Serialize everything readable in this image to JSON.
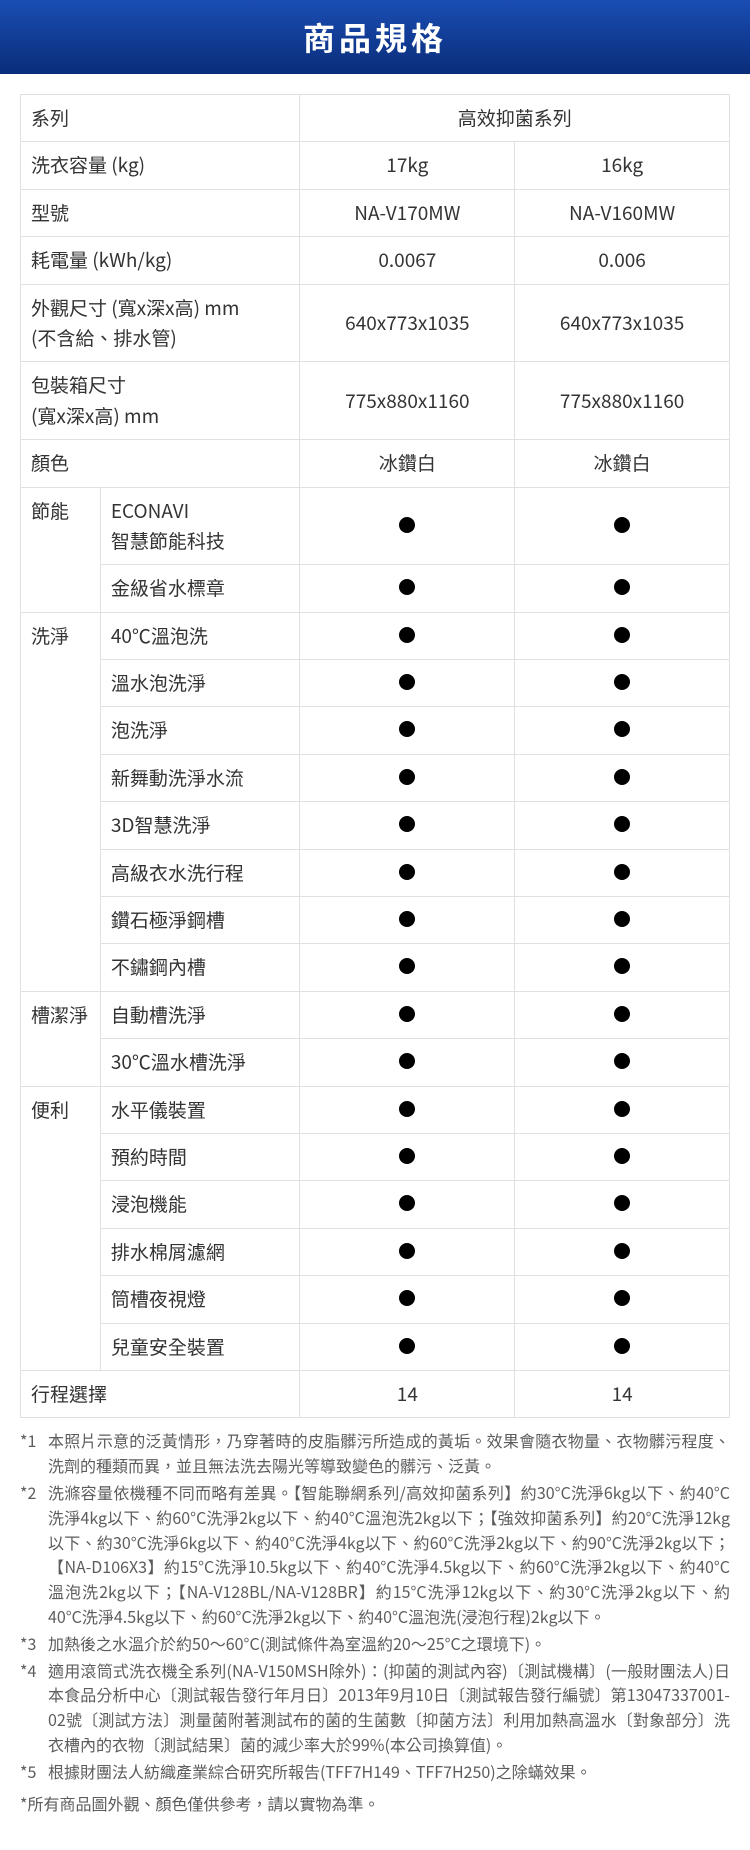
{
  "header_title": "商品規格",
  "table": {
    "rows": [
      {
        "label": "系列",
        "colspan_label": 2,
        "values": [
          "高效抑菌系列"
        ],
        "val_colspan": 2
      },
      {
        "label": "洗衣容量 (kg)",
        "colspan_label": 2,
        "values": [
          "17kg",
          "16kg"
        ]
      },
      {
        "label": "型號",
        "colspan_label": 2,
        "values": [
          "NA-V170MW",
          "NA-V160MW"
        ]
      },
      {
        "label": "耗電量 (kWh/kg)",
        "colspan_label": 2,
        "values": [
          "0.0067",
          "0.006"
        ]
      },
      {
        "label": "外觀尺寸 (寬x深x高) mm\n(不含給、排水管)",
        "colspan_label": 2,
        "values": [
          "640x773x1035",
          "640x773x1035"
        ]
      },
      {
        "label": "包裝箱尺寸\n(寬x深x高) mm",
        "colspan_label": 2,
        "values": [
          "775x880x1160",
          "775x880x1160"
        ]
      },
      {
        "label": "顏色",
        "colspan_label": 2,
        "values": [
          "冰鑽白",
          "冰鑽白"
        ]
      }
    ],
    "groups": [
      {
        "group": "節能",
        "items": [
          {
            "sub": "ECONAVI\n智慧節能科技",
            "values": [
              "dot",
              "dot"
            ]
          },
          {
            "sub": "金級省水標章",
            "values": [
              "dot",
              "dot"
            ]
          }
        ]
      },
      {
        "group": "洗淨",
        "items": [
          {
            "sub": "40℃溫泡洗",
            "values": [
              "dot",
              "dot"
            ]
          },
          {
            "sub": "溫水泡洗淨",
            "values": [
              "dot",
              "dot"
            ]
          },
          {
            "sub": "泡洗淨",
            "values": [
              "dot",
              "dot"
            ]
          },
          {
            "sub": "新舞動洗淨水流",
            "values": [
              "dot",
              "dot"
            ]
          },
          {
            "sub": "3D智慧洗淨",
            "values": [
              "dot",
              "dot"
            ]
          },
          {
            "sub": "高級衣水洗行程",
            "values": [
              "dot",
              "dot"
            ]
          },
          {
            "sub": "鑽石極淨鋼槽",
            "values": [
              "dot",
              "dot"
            ]
          },
          {
            "sub": "不鏽鋼內槽",
            "values": [
              "dot",
              "dot"
            ]
          }
        ]
      },
      {
        "group": "槽潔淨",
        "items": [
          {
            "sub": "自動槽洗淨",
            "values": [
              "dot",
              "dot"
            ]
          },
          {
            "sub": "30℃溫水槽洗淨",
            "values": [
              "dot",
              "dot"
            ]
          }
        ]
      },
      {
        "group": "便利",
        "items": [
          {
            "sub": "水平儀裝置",
            "values": [
              "dot",
              "dot"
            ]
          },
          {
            "sub": "預約時間",
            "values": [
              "dot",
              "dot"
            ]
          },
          {
            "sub": "浸泡機能",
            "values": [
              "dot",
              "dot"
            ]
          },
          {
            "sub": "排水棉屑濾網",
            "values": [
              "dot",
              "dot"
            ]
          },
          {
            "sub": "筒槽夜視燈",
            "values": [
              "dot",
              "dot"
            ]
          },
          {
            "sub": "兒童安全裝置",
            "values": [
              "dot",
              "dot"
            ]
          }
        ]
      }
    ],
    "last_row": {
      "label": "行程選擇",
      "colspan_label": 2,
      "values": [
        "14",
        "14"
      ]
    }
  },
  "notes": [
    {
      "num": "*1",
      "text": "本照片示意的泛黃情形，乃穿著時的皮脂髒污所造成的黃垢。效果會隨衣物量、衣物髒污程度、洗劑的種類而異，並且無法洗去陽光等導致變色的髒污、泛黃。"
    },
    {
      "num": "*2",
      "text": "洗滌容量依機種不同而略有差異。【智能聯網系列/高效抑菌系列】約30°C洗淨6kg以下、約40°C洗淨4kg以下、約60°C洗淨2kg以下、約40°C溫泡洗2kg以下；【強效抑菌系列】約20°C洗淨12kg以下、約30°C洗淨6kg以下、約40°C洗淨4kg以下、約60°C洗淨2kg以下、約90°C洗淨2kg以下；【NA-D106X3】約15°C洗淨10.5kg以下、約40°C洗淨4.5kg以下、約60°C洗淨2kg以下、約40°C溫泡洗2kg以下；【NA-V128BL/NA-V128BR】約15°C洗淨12kg以下、約30°C洗淨2kg以下、約40°C洗淨4.5kg以下、約60°C洗淨2kg以下、約40°C溫泡洗(浸泡行程)2kg以下。"
    },
    {
      "num": "*3",
      "text": "加熱後之水溫介於約50～60°C(測試條件為室溫約20～25°C之環境下)。"
    },
    {
      "num": "*4",
      "text": "適用滾筒式洗衣機全系列(NA-V150MSH除外)：(抑菌的測試內容)〔測試機構〕(一般財團法人)日本食品分析中心〔測試報告發行年月日〕2013年9月10日〔測試報告發行編號〕第13047337001-02號〔測試方法〕測量菌附著測試布的菌的生菌數〔抑菌方法〕利用加熱高溫水〔對象部分〕洗衣槽內的衣物〔測試結果〕菌的減少率大於99%(本公司換算值)。"
    },
    {
      "num": "*5",
      "text": "根據財團法人紡織產業綜合研究所報告(TFF7H149、TFF7H250)之除蟎效果。"
    }
  ],
  "final_note": "*所有商品圖外觀、顏色僅供參考，請以實物為準。"
}
